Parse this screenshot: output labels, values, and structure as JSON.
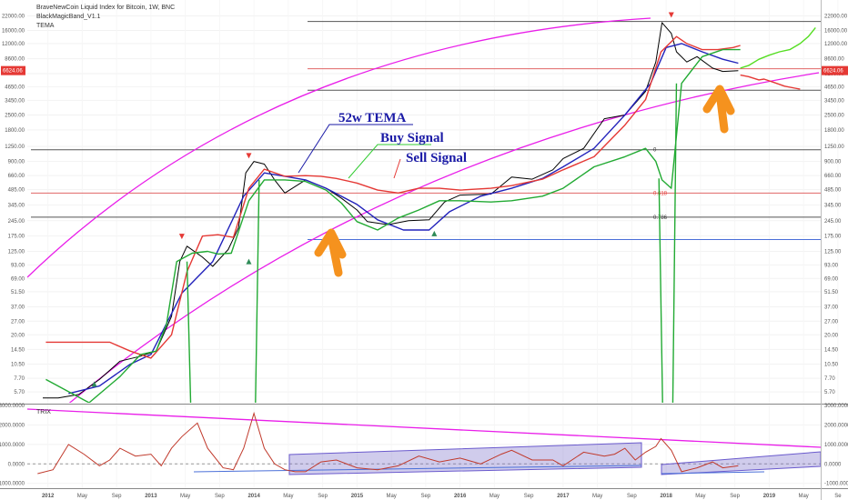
{
  "chart_data": {
    "type": "line",
    "header": {
      "line1": "BraveNewCoin Liquid Index for Bitcoin, 1W, BNC",
      "line2": "BlackMagicBand_V1.1",
      "line3": "TEMA"
    },
    "price_axis": {
      "scale": "log",
      "ticks": [
        "30000.00",
        "22000.00",
        "16000.00",
        "12000.00",
        "8600.00",
        "6200.00",
        "4650.00",
        "3450.00",
        "2500.00",
        "1800.00",
        "1250.00",
        "900.00",
        "660.00",
        "485.00",
        "345.00",
        "245.00",
        "175.00",
        "125.00",
        "93.00",
        "69.00",
        "51.50",
        "37.00",
        "27.00",
        "20.00",
        "14.50",
        "10.50",
        "7.70",
        "5.70"
      ],
      "left_ticks": [
        "30000.00",
        "22000.00",
        "16000.00",
        "12000.00",
        "8600.00",
        "4650.00",
        "3450.00",
        "2500.00",
        "1800.00",
        "1250.00",
        "900.00",
        "660.00",
        "485.00",
        "345.00",
        "245.00",
        "175.00",
        "125.00",
        "93.00",
        "69.00",
        "51.50",
        "37.00",
        "27.00",
        "20.00",
        "14.50",
        "10.50",
        "7.70",
        "5.70"
      ],
      "current_label": "6624.06"
    },
    "indicator_axis": {
      "ticks": [
        "3000.0000",
        "2000.0000",
        "1000.0000",
        "0.0000",
        "-1000.0000"
      ],
      "label": "TRIX"
    },
    "x_axis": {
      "labels": [
        "2012",
        "May",
        "Sep",
        "2013",
        "May",
        "Sep",
        "2014",
        "May",
        "Sep",
        "2015",
        "May",
        "Sep",
        "2016",
        "May",
        "Sep",
        "2017",
        "May",
        "Sep",
        "2018",
        "May",
        "Sep",
        "2019",
        "May",
        "Se"
      ],
      "major": [
        "2012",
        "2013",
        "2014",
        "2015",
        "2016",
        "2017",
        "2018",
        "2019"
      ]
    },
    "fib_levels": [
      {
        "label": "0",
        "price": 1165
      },
      {
        "label": "0.618",
        "price": 450
      },
      {
        "label": "0.786",
        "price": 265
      }
    ],
    "annotations": {
      "tema_label": "52w TEMA",
      "buy_label": "Buy Signal",
      "sell_label": "Sell Signal"
    },
    "series": [
      {
        "name": "",
        "color": "#000000",
        "x": [
          2011.95,
          2012.1,
          2012.3,
          2012.5,
          2012.7,
          2012.9,
          2013.05,
          2013.2,
          2013.28,
          2013.35,
          2013.5,
          2013.6,
          2013.75,
          2013.85,
          2013.92,
          2014.0,
          2014.1,
          2014.2,
          2014.3,
          2014.5,
          2014.7,
          2014.85,
          2015.0,
          2015.1,
          2015.3,
          2015.5,
          2015.7,
          2015.85,
          2016.0,
          2016.3,
          2016.5,
          2016.7,
          2016.9,
          2017.0,
          2017.2,
          2017.4,
          2017.6,
          2017.8,
          2017.9,
          2017.96,
          2018.05,
          2018.1,
          2018.2,
          2018.3,
          2018.45,
          2018.55,
          2018.7
        ],
        "y": [
          5.0,
          5.0,
          5.4,
          7.5,
          11.2,
          12.5,
          14,
          30,
          100,
          140,
          110,
          90,
          130,
          210,
          700,
          900,
          850,
          600,
          450,
          600,
          500,
          400,
          310,
          240,
          225,
          245,
          250,
          370,
          430,
          440,
          640,
          610,
          750,
          960,
          1200,
          2300,
          2500,
          4200,
          8000,
          19000,
          15000,
          10000,
          8000,
          9000,
          7000,
          6500,
          6600
        ]
      },
      {
        "name": "",
        "color": "#2222bb",
        "x": [
          2012.2,
          2012.5,
          2012.8,
          2013.0,
          2013.3,
          2013.6,
          2013.9,
          2014.1,
          2014.3,
          2014.5,
          2014.7,
          2015.0,
          2015.2,
          2015.45,
          2015.7,
          2015.9,
          2016.2,
          2016.5,
          2016.8,
          2017.0,
          2017.3,
          2017.6,
          2017.85,
          2018.0,
          2018.15,
          2018.35,
          2018.55,
          2018.7
        ],
        "y": [
          5.5,
          6.5,
          10.5,
          13,
          50,
          100,
          420,
          700,
          650,
          600,
          500,
          350,
          250,
          200,
          200,
          300,
          420,
          500,
          620,
          800,
          1200,
          2500,
          5000,
          11000,
          12000,
          10000,
          8500,
          7800
        ]
      },
      {
        "name": "",
        "color": "#e53935",
        "x": [
          2011.98,
          2012.3,
          2012.6,
          2012.8,
          2013.0,
          2013.2,
          2013.35,
          2013.5,
          2013.65,
          2013.8,
          2013.95,
          2014.1,
          2014.3,
          2014.5,
          2014.65,
          2014.8,
          2015.0,
          2015.2,
          2015.4,
          2015.6,
          2015.8,
          2016.0,
          2016.3,
          2016.5,
          2016.8,
          2017.0,
          2017.3,
          2017.6,
          2017.8,
          2017.95,
          2018.1,
          2018.2,
          2018.35,
          2018.5,
          2018.65,
          2018.72
        ],
        "y": [
          17,
          17,
          17,
          14,
          12,
          20,
          80,
          175,
          180,
          170,
          500,
          760,
          650,
          660,
          650,
          620,
          560,
          480,
          450,
          500,
          500,
          480,
          500,
          530,
          610,
          750,
          1000,
          2000,
          3500,
          10000,
          14000,
          12000,
          10500,
          10500,
          11000,
          11500
        ]
      },
      {
        "name": "",
        "color": "#22aa33",
        "x": [
          2011.98,
          2012.4,
          2012.7,
          2012.9,
          2013.05,
          2013.15,
          2013.25,
          2013.4,
          2013.55,
          2013.65,
          2013.78,
          2013.95,
          2014.1,
          2014.3,
          2014.5,
          2014.7,
          2014.85,
          2015.0,
          2015.2,
          2015.4,
          2015.6,
          2015.8,
          2016.0,
          2016.3,
          2016.5,
          2016.8,
          2017.0,
          2017.3,
          2017.6,
          2017.8,
          2017.9,
          2017.96,
          2018.05,
          2018.15,
          2018.35,
          2018.55,
          2018.72
        ],
        "y": [
          7.5,
          4.5,
          8,
          13,
          14,
          25,
          100,
          120,
          125,
          118,
          120,
          380,
          600,
          600,
          580,
          480,
          360,
          240,
          200,
          260,
          310,
          380,
          380,
          370,
          380,
          420,
          500,
          800,
          1000,
          1200,
          900,
          600,
          500,
          5000,
          9000,
          10500,
          10500
        ]
      },
      {
        "name": "",
        "color": "#55dd22",
        "x": [
          2018.72,
          2018.8,
          2018.9,
          2019.0,
          2019.1,
          2019.2,
          2019.3,
          2019.38,
          2019.45
        ],
        "y": [
          7000,
          7400,
          8500,
          9300,
          10000,
          10500,
          12000,
          14000,
          17000
        ]
      },
      {
        "name": "",
        "color": "#e53935",
        "x": [
          2018.72,
          2018.8,
          2018.9,
          2018.95,
          2019.05,
          2019.15,
          2019.25,
          2019.3
        ],
        "y": [
          6000,
          5800,
          5400,
          5500,
          5100,
          4700,
          4500,
          4400
        ]
      }
    ],
    "indicator_series": {
      "name": "TRIX",
      "color": "#c0392b",
      "x": [
        2011.9,
        2012.05,
        2012.2,
        2012.35,
        2012.5,
        2012.6,
        2012.7,
        2012.85,
        2013.0,
        2013.1,
        2013.2,
        2013.3,
        2013.45,
        2013.55,
        2013.7,
        2013.8,
        2013.9,
        2014.0,
        2014.1,
        2014.2,
        2014.3,
        2014.4,
        2014.5,
        2014.65,
        2014.8,
        2015.0,
        2015.2,
        2015.4,
        2015.6,
        2015.8,
        2016.0,
        2016.2,
        2016.4,
        2016.5,
        2016.7,
        2016.9,
        2017.0,
        2017.2,
        2017.4,
        2017.5,
        2017.6,
        2017.7,
        2017.8,
        2017.9,
        2017.95,
        2018.05,
        2018.15,
        2018.3,
        2018.45,
        2018.55,
        2018.7
      ],
      "y": [
        -500,
        -300,
        1000,
        500,
        -100,
        200,
        800,
        400,
        500,
        -100,
        800,
        1400,
        2100,
        800,
        -200,
        -300,
        800,
        2600,
        800,
        0,
        -300,
        -400,
        -400,
        100,
        200,
        -200,
        -300,
        -100,
        400,
        100,
        300,
        0,
        500,
        700,
        200,
        200,
        -100,
        600,
        400,
        500,
        800,
        200,
        600,
        900,
        1300,
        700,
        -400,
        -200,
        100,
        -200,
        -100
      ]
    },
    "indicator_zero": 0,
    "indicator_range": [
      -1200,
      3000
    ],
    "price_range": [
      4.5,
      30000
    ],
    "x_range": [
      2011.8,
      2019.5
    ]
  }
}
